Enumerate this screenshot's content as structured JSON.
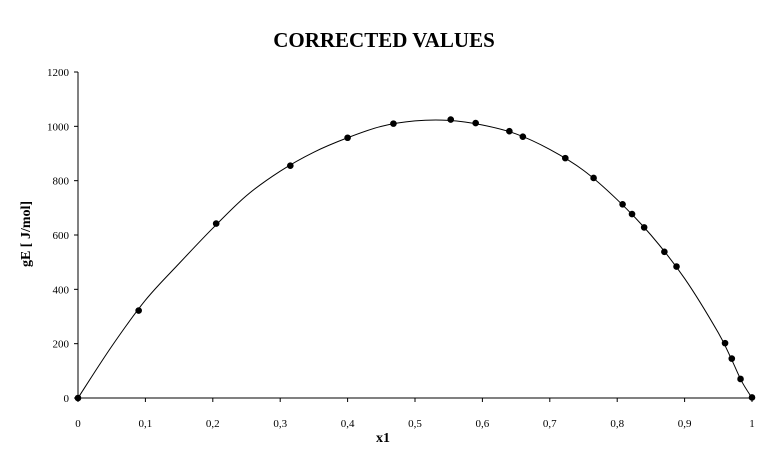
{
  "chart_data": {
    "type": "scatter",
    "title": "CORRECTED VALUES",
    "xlabel": "x1",
    "ylabel": "gE [ J/mol]",
    "xlim": [
      0,
      1
    ],
    "ylim": [
      0,
      1200
    ],
    "x_ticks": [
      0,
      0.1,
      0.2,
      0.3,
      0.4,
      0.5,
      0.6,
      0.7,
      0.8,
      0.9,
      1
    ],
    "x_tick_labels": [
      "0",
      "0,1",
      "0,2",
      "0,3",
      "0,4",
      "0,5",
      "0,6",
      "0,7",
      "0,8",
      "0,9",
      "1"
    ],
    "y_ticks": [
      0,
      200,
      400,
      600,
      800,
      1000,
      1200
    ],
    "y_tick_labels": [
      "0",
      "200",
      "400",
      "600",
      "800",
      "1000",
      "1200"
    ],
    "grid": false,
    "legend": "none",
    "series": [
      {
        "style": "markers",
        "color": "#000000",
        "x": [
          0,
          0.09,
          0.205,
          0.315,
          0.4,
          0.468,
          0.553,
          0.59,
          0.64,
          0.66,
          0.723,
          0.765,
          0.808,
          0.822,
          0.84,
          0.87,
          0.888,
          0.96,
          0.97,
          0.983,
          1.0
        ],
        "y": [
          0,
          322,
          642,
          855,
          958,
          1010,
          1025,
          1012,
          982,
          962,
          883,
          810,
          713,
          677,
          628,
          538,
          484,
          202,
          145,
          70,
          2
        ]
      },
      {
        "style": "smooth-line",
        "color": "#000000",
        "x": [
          0,
          0.05,
          0.1,
          0.15,
          0.2,
          0.25,
          0.3,
          0.35,
          0.4,
          0.45,
          0.5,
          0.55,
          0.6,
          0.65,
          0.7,
          0.75,
          0.8,
          0.85,
          0.9,
          0.95,
          0.97,
          0.985,
          1.0
        ],
        "y": [
          0,
          190,
          360,
          495,
          625,
          745,
          835,
          905,
          958,
          1000,
          1020,
          1022,
          1005,
          972,
          915,
          838,
          730,
          600,
          440,
          240,
          140,
          60,
          0
        ]
      }
    ]
  }
}
